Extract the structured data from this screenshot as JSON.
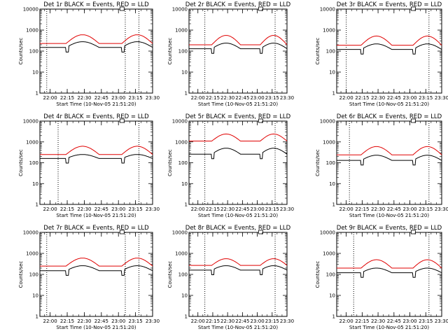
{
  "chart_data": [
    {
      "type": "line",
      "title": "Det 1r BLACK = Events, RED = LLD",
      "xlabel": "Start Time (10-Nov-05 21:51:20)",
      "ylabel": "Counts/sec",
      "yscale": "log",
      "ylim": [
        1,
        10000
      ],
      "xlim": [
        "21:51",
        "23:30"
      ],
      "x_ticks": [
        "22:00",
        "22:15",
        "22:30",
        "22:45",
        "23:00",
        "23:15",
        "23:30"
      ],
      "y_ticks": [
        "1",
        "10",
        "100",
        "1000",
        "10000"
      ],
      "vlines": [
        "21:57",
        "23:06",
        "23:18"
      ],
      "series": [
        {
          "name": "BLACK = Events",
          "color": "#000000",
          "baseline": 150,
          "peak": 280
        },
        {
          "name": "RED = LLD",
          "color": "#e00000",
          "baseline": 230,
          "peak": 600
        }
      ]
    },
    {
      "type": "line",
      "title": "Det 2r BLACK = Events, RED = LLD",
      "xlabel": "Start Time (10-Nov-05 21:51:20)",
      "ylabel": "Counts/sec",
      "yscale": "log",
      "ylim": [
        1,
        10000
      ],
      "xlim": [
        "21:51",
        "23:30"
      ],
      "x_ticks": [
        "22:00",
        "22:15",
        "22:30",
        "22:45",
        "23:00",
        "23:15",
        "23:30"
      ],
      "y_ticks": [
        "1",
        "10",
        "100",
        "1000",
        "10000"
      ],
      "vlines": [
        "22:07",
        "23:18"
      ],
      "series": [
        {
          "name": "BLACK = Events",
          "color": "#000000",
          "baseline": 130,
          "peak": 240
        },
        {
          "name": "RED = LLD",
          "color": "#e00000",
          "baseline": 200,
          "peak": 560
        }
      ]
    },
    {
      "type": "line",
      "title": "Det 3r BLACK = Events, RED = LLD",
      "xlabel": "Start Time (10-Nov-05 21:51:20)",
      "ylabel": "Counts/sec",
      "yscale": "log",
      "ylim": [
        1,
        10000
      ],
      "xlim": [
        "21:51",
        "23:30"
      ],
      "x_ticks": [
        "22:00",
        "22:15",
        "22:30",
        "22:45",
        "23:00",
        "23:15",
        "23:30"
      ],
      "y_ticks": [
        "1",
        "10",
        "100",
        "1000",
        "10000"
      ],
      "vlines": [
        "22:00",
        "23:18"
      ],
      "series": [
        {
          "name": "BLACK = Events",
          "color": "#000000",
          "baseline": 120,
          "peak": 220
        },
        {
          "name": "RED = LLD",
          "color": "#e00000",
          "baseline": 190,
          "peak": 520
        }
      ]
    },
    {
      "type": "line",
      "title": "Det 4r BLACK = Events, RED = LLD",
      "xlabel": "Start Time (10-Nov-05 21:51:20)",
      "ylabel": "Counts/sec",
      "yscale": "log",
      "ylim": [
        1,
        10000
      ],
      "xlim": [
        "21:51",
        "23:30"
      ],
      "x_ticks": [
        "22:00",
        "22:15",
        "22:30",
        "22:45",
        "23:00",
        "23:15",
        "23:30"
      ],
      "y_ticks": [
        "1",
        "10",
        "100",
        "1000",
        "10000"
      ],
      "vlines": [
        "22:07",
        "23:18"
      ],
      "series": [
        {
          "name": "BLACK = Events",
          "color": "#000000",
          "baseline": 160,
          "peak": 250
        },
        {
          "name": "RED = LLD",
          "color": "#e00000",
          "baseline": 250,
          "peak": 620
        }
      ]
    },
    {
      "type": "line",
      "title": "Det 5r BLACK = Events, RED = LLD",
      "xlabel": "Start Time (10-Nov-05 21:51:20)",
      "ylabel": "Counts/sec",
      "yscale": "log",
      "ylim": [
        1,
        10000
      ],
      "xlim": [
        "21:51",
        "23:30"
      ],
      "x_ticks": [
        "22:00",
        "22:15",
        "22:30",
        "22:45",
        "23:00",
        "23:15",
        "23:30"
      ],
      "y_ticks": [
        "1",
        "10",
        "100",
        "1000",
        "10000"
      ],
      "vlines": [
        "22:07",
        "23:18"
      ],
      "series": [
        {
          "name": "BLACK = Events",
          "color": "#000000",
          "baseline": 260,
          "peak": 500
        },
        {
          "name": "RED = LLD",
          "color": "#e00000",
          "baseline": 1100,
          "peak": 2400
        }
      ]
    },
    {
      "type": "line",
      "title": "Det 6r BLACK = Events, RED = LLD",
      "xlabel": "Start Time (10-Nov-05 21:51:20)",
      "ylabel": "Counts/sec",
      "yscale": "log",
      "ylim": [
        1,
        10000
      ],
      "xlim": [
        "21:51",
        "23:30"
      ],
      "x_ticks": [
        "22:00",
        "22:15",
        "22:30",
        "22:45",
        "23:00",
        "23:15",
        "23:30"
      ],
      "y_ticks": [
        "1",
        "10",
        "100",
        "1000",
        "10000"
      ],
      "vlines": [
        "22:03",
        "23:18"
      ],
      "series": [
        {
          "name": "BLACK = Events",
          "color": "#000000",
          "baseline": 130,
          "peak": 230
        },
        {
          "name": "RED = LLD",
          "color": "#e00000",
          "baseline": 240,
          "peak": 600
        }
      ]
    },
    {
      "type": "line",
      "title": "Det 7r BLACK = Events, RED = LLD",
      "xlabel": "Start Time (10-Nov-05 21:51:20)",
      "ylabel": "Counts/sec",
      "yscale": "log",
      "ylim": [
        1,
        10000
      ],
      "xlim": [
        "21:51",
        "23:30"
      ],
      "x_ticks": [
        "22:00",
        "22:15",
        "22:30",
        "22:45",
        "23:00",
        "23:15",
        "23:30"
      ],
      "y_ticks": [
        "1",
        "10",
        "100",
        "1000",
        "10000"
      ],
      "vlines": [
        "21:57",
        "23:06",
        "23:18"
      ],
      "series": [
        {
          "name": "BLACK = Events",
          "color": "#000000",
          "baseline": 150,
          "peak": 260
        },
        {
          "name": "RED = LLD",
          "color": "#e00000",
          "baseline": 250,
          "peak": 600
        }
      ]
    },
    {
      "type": "line",
      "title": "Det 8r BLACK = Events, RED = LLD",
      "xlabel": "Start Time (10-Nov-05 21:51:20)",
      "ylabel": "Counts/sec",
      "yscale": "log",
      "ylim": [
        1,
        10000
      ],
      "xlim": [
        "21:51",
        "23:30"
      ],
      "x_ticks": [
        "22:00",
        "22:15",
        "22:30",
        "22:45",
        "23:00",
        "23:15",
        "23:30"
      ],
      "y_ticks": [
        "1",
        "10",
        "100",
        "1000",
        "10000"
      ],
      "vlines": [
        "22:07",
        "23:18"
      ],
      "series": [
        {
          "name": "BLACK = Events",
          "color": "#000000",
          "baseline": 160,
          "peak": 260
        },
        {
          "name": "RED = LLD",
          "color": "#e00000",
          "baseline": 270,
          "peak": 560
        }
      ]
    },
    {
      "type": "line",
      "title": "Det 9r BLACK = Events, RED = LLD",
      "xlabel": "Start Time (10-Nov-05 21:51:20)",
      "ylabel": "Counts/sec",
      "yscale": "log",
      "ylim": [
        1,
        10000
      ],
      "xlim": [
        "21:51",
        "23:30"
      ],
      "x_ticks": [
        "22:00",
        "22:15",
        "22:30",
        "22:45",
        "23:00",
        "23:15",
        "23:30"
      ],
      "y_ticks": [
        "1",
        "10",
        "100",
        "1000",
        "10000"
      ],
      "vlines": [
        "22:07",
        "23:18"
      ],
      "series": [
        {
          "name": "BLACK = Events",
          "color": "#000000",
          "baseline": 120,
          "peak": 200
        },
        {
          "name": "RED = LLD",
          "color": "#e00000",
          "baseline": 200,
          "peak": 500
        }
      ]
    }
  ]
}
